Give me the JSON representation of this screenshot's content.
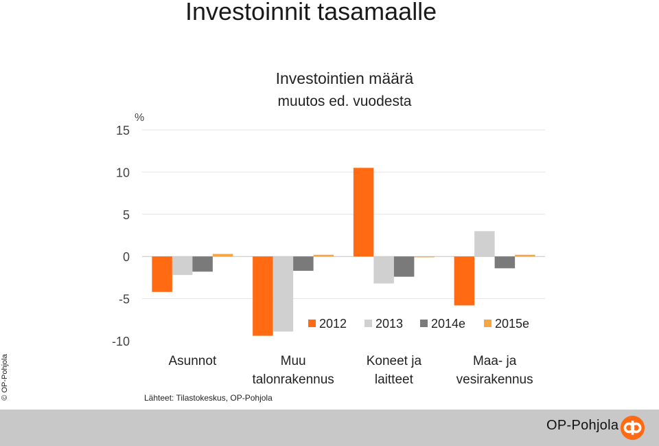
{
  "page": {
    "title": "Investoinnit tasamaalle",
    "copyright": "© OP-Pohjola",
    "source": "Lähteet: Tilastokeskus, OP-Pohjola",
    "brand_name": "OP-Pohjola"
  },
  "chart_data": {
    "type": "bar",
    "title": "Investointien määrä",
    "subtitle": "muutos ed. vuodesta",
    "ylabel": "%",
    "ylim": [
      -10,
      15
    ],
    "yticks": [
      15,
      10,
      5,
      0,
      -5,
      -10
    ],
    "grid": true,
    "legend_position": "bottom-right",
    "categories": [
      [
        "Asunnot"
      ],
      [
        "Muu",
        "talonrakennus"
      ],
      [
        "Koneet ja",
        "laitteet"
      ],
      [
        "Maa- ja",
        "vesirakennus"
      ]
    ],
    "series": [
      {
        "name": "2012",
        "color": "#ff6a13",
        "values": [
          -4.2,
          -9.4,
          10.5,
          -5.8
        ]
      },
      {
        "name": "2013",
        "color": "#d0d0d0",
        "values": [
          -2.2,
          -8.9,
          -3.2,
          3.0
        ]
      },
      {
        "name": "2014e",
        "color": "#7a7a7a",
        "values": [
          -1.8,
          -1.7,
          -2.4,
          -1.4
        ]
      },
      {
        "name": "2015e",
        "color": "#f5a542",
        "values": [
          0.3,
          0.2,
          -0.1,
          0.2
        ]
      }
    ]
  }
}
